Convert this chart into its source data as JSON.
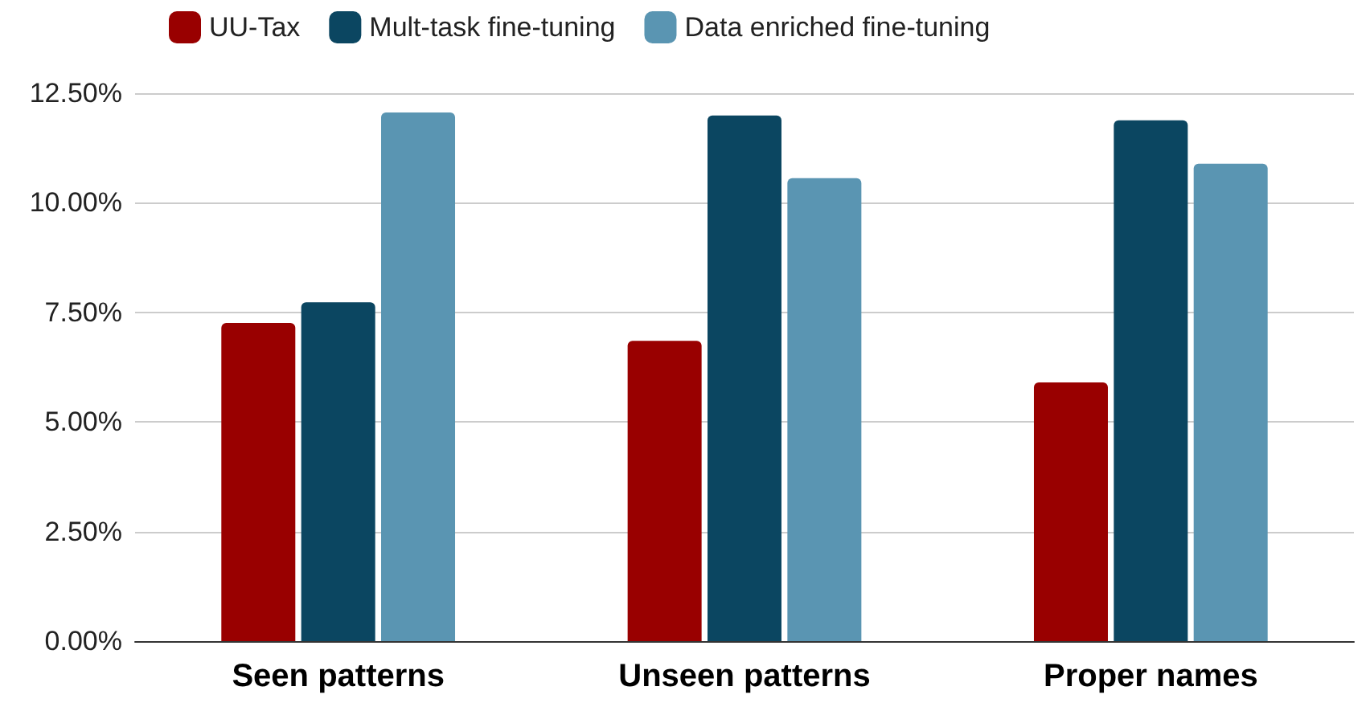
{
  "chart_data": {
    "type": "bar",
    "categories": [
      "Seen patterns",
      "Unseen patterns",
      "Proper names"
    ],
    "series": [
      {
        "name": "UU-Tax",
        "color": "#990000",
        "values": [
          7.26,
          6.85,
          5.9
        ]
      },
      {
        "name": "Mult-task fine-tuning",
        "color": "#0b4661",
        "values": [
          7.73,
          11.99,
          11.88
        ]
      },
      {
        "name": "Data enriched fine-tuning",
        "color": "#5a95b2",
        "values": [
          12.06,
          10.56,
          10.89
        ]
      }
    ],
    "ylim": [
      0,
      12.5
    ],
    "yticks": [
      {
        "value": 0,
        "label": "0.00%"
      },
      {
        "value": 2.5,
        "label": "2.50%"
      },
      {
        "value": 5,
        "label": "5.00%"
      },
      {
        "value": 7.5,
        "label": "7.50%"
      },
      {
        "value": 10,
        "label": "10.00%"
      },
      {
        "value": 12.5,
        "label": "12.50%"
      }
    ],
    "grid": "y",
    "legend": "top left"
  }
}
